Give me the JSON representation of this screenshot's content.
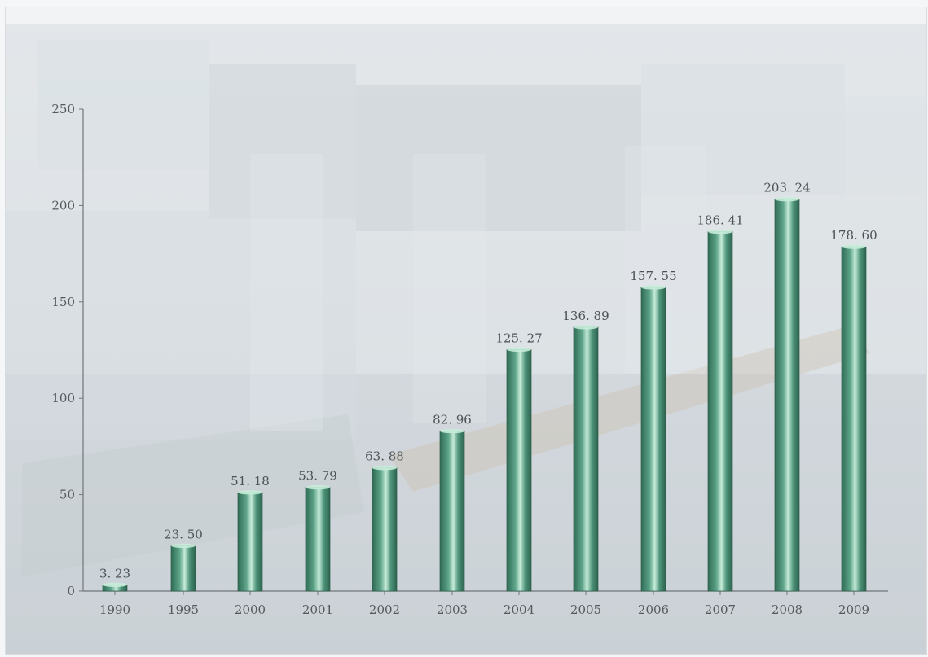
{
  "chart_data": {
    "type": "bar",
    "categories": [
      "1990",
      "1995",
      "2000",
      "2001",
      "2002",
      "2003",
      "2004",
      "2005",
      "2006",
      "2007",
      "2008",
      "2009"
    ],
    "values": [
      3.23,
      23.5,
      51.18,
      53.79,
      63.88,
      82.96,
      125.27,
      136.89,
      157.55,
      186.41,
      203.24,
      178.6
    ],
    "value_labels": [
      "3. 23",
      "23. 50",
      "51. 18",
      "53. 79",
      "63. 88",
      "82. 96",
      "125. 27",
      "136. 89",
      "157. 55",
      "186. 41",
      "203. 24",
      "178. 60"
    ],
    "y_ticks": [
      0,
      50,
      100,
      150,
      200,
      250
    ],
    "ylim": [
      0,
      250
    ],
    "title": "",
    "xlabel": "",
    "ylabel": "",
    "grid": false,
    "legend": "none",
    "colors": {
      "bar_dark": "#2f6b55",
      "bar_mid": "#5ea58a",
      "bar_light": "#c7ecd9",
      "axis": "#6f7579",
      "text": "#555a5e"
    }
  }
}
